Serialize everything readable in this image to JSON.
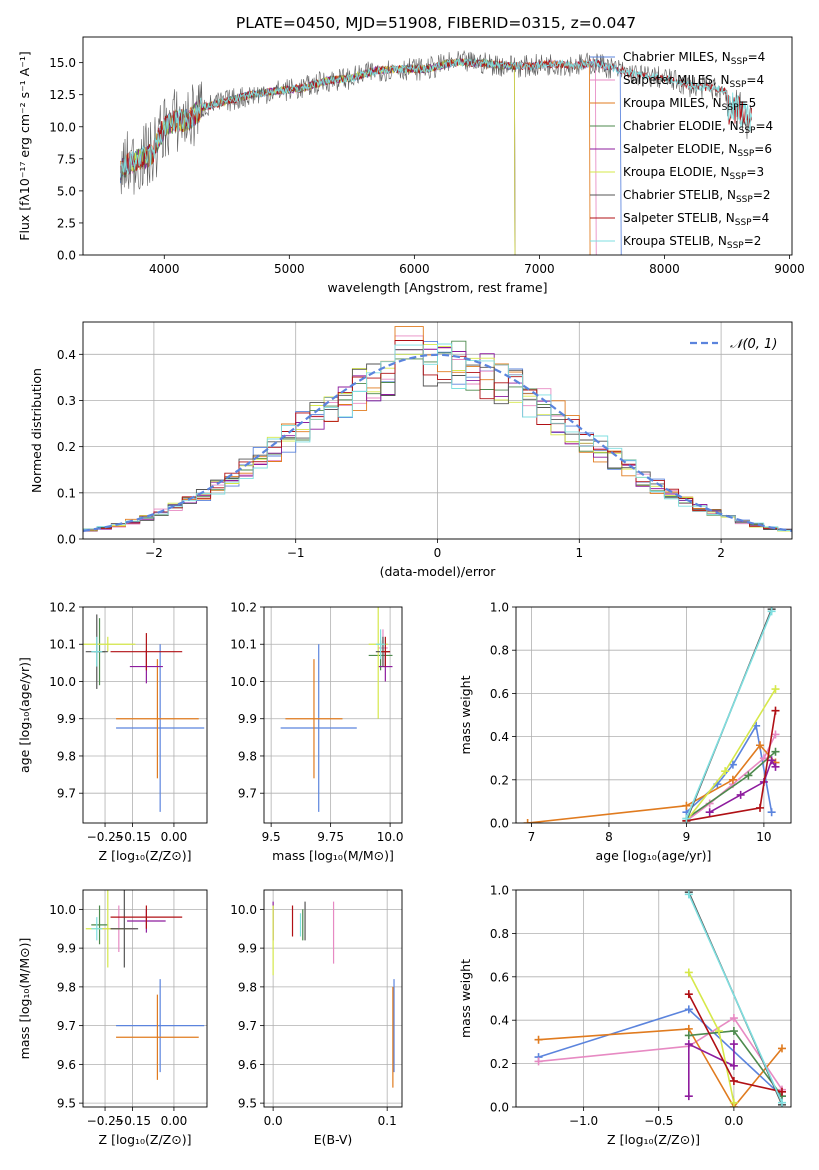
{
  "colors": {
    "chabrier_miles": "#5b84dd",
    "salpeter_miles": "#e78ac3",
    "kroupa_miles": "#e07b1f",
    "chabrier_elodie": "#4d8a4d",
    "salpeter_elodie": "#8e1c9e",
    "kroupa_elodie": "#d6e84a",
    "chabrier_stelib": "#555555",
    "salpeter_stelib": "#b01015",
    "kroupa_stelib": "#7fdfe0",
    "gaussian": "#5b84dd",
    "grid": "#b0b0b0"
  },
  "chart_data": [
    {
      "id": "spectrum",
      "type": "line",
      "title": "PLATE=0450, MJD=51908, FIBERID=0315, z=0.047",
      "xlabel": "wavelength [Angstrom, rest frame]",
      "ylabel": "Flux [fλ10⁻¹⁷ erg cm⁻² s⁻¹ A⁻¹]",
      "xlim": [
        3350,
        9020
      ],
      "ylim": [
        0,
        17
      ],
      "xticks": [
        "4000",
        "5000",
        "6000",
        "7000",
        "8000",
        "9000"
      ],
      "yticks": [
        "0.0",
        "2.5",
        "5.0",
        "7.5",
        "10.0",
        "12.5",
        "15.0"
      ],
      "grid": false,
      "legend_position": "right",
      "data_x": [
        3650,
        3700,
        3800,
        3900,
        4000,
        4100,
        4200,
        4300,
        4500,
        4700,
        4900,
        5100,
        5300,
        5500,
        5700,
        5900,
        6100,
        6300,
        6500,
        6700,
        6900,
        7100,
        7300,
        7450,
        7600,
        7800,
        8000,
        8200,
        8400,
        8600,
        8700
      ],
      "data_y": [
        6.5,
        7.0,
        7.5,
        7.8,
        10.0,
        10.5,
        10.5,
        11.5,
        12.0,
        12.5,
        12.8,
        13.0,
        13.6,
        13.8,
        14.4,
        14.5,
        14.5,
        15.0,
        15.0,
        14.8,
        14.7,
        14.9,
        14.8,
        15.0,
        14.5,
        14.0,
        13.8,
        13.2,
        13.0,
        12.5,
        12.0
      ],
      "series": [
        {
          "name": "Chabrier MILES",
          "nssp": "4",
          "x_end": 7650
        },
        {
          "name": "Salpeter MILES",
          "nssp": "4",
          "x_end": 7450
        },
        {
          "name": "Kroupa MILES",
          "nssp": "5",
          "x_end": 7400
        },
        {
          "name": "Chabrier ELODIE",
          "nssp": "4",
          "x_end": 6800
        },
        {
          "name": "Salpeter ELODIE",
          "nssp": "6",
          "x_end": 6800
        },
        {
          "name": "Kroupa ELODIE",
          "nssp": "3",
          "x_end": 6800
        },
        {
          "name": "Chabrier STELIB",
          "nssp": "2",
          "x_end": 8700
        },
        {
          "name": "Salpeter STELIB",
          "nssp": "4",
          "x_end": 8700
        },
        {
          "name": "Kroupa STELIB",
          "nssp": "2",
          "x_end": 8700
        }
      ]
    },
    {
      "id": "residuals",
      "type": "histogram",
      "xlabel": "(data-model)/error",
      "ylabel": "Normed distribution",
      "xlim": [
        -2.5,
        2.5
      ],
      "ylim": [
        0,
        0.47
      ],
      "xticks": [
        "−2",
        "−1",
        "0",
        "1",
        "2"
      ],
      "yticks": [
        "0.0",
        "0.1",
        "0.2",
        "0.3",
        "0.4"
      ],
      "grid": true,
      "legend_position": "top-right",
      "legend_label": "𝒩(0, 1)",
      "bin_width": 0.1,
      "peaks": [
        0.4,
        0.44,
        0.46,
        0.39,
        0.41,
        0.4,
        0.41,
        0.43,
        0.42
      ]
    },
    {
      "id": "age_vs_z",
      "type": "errorbar",
      "xlabel": "Z [log₁₀(Z/Z⊙)]",
      "ylabel": "age  [log₁₀(age/yr)]",
      "xlim": [
        -0.33,
        0.12
      ],
      "ylim": [
        9.62,
        10.2
      ],
      "xticks": [
        "−0.25",
        "−0.15",
        "0.00"
      ],
      "yticks": [
        "9.7",
        "9.8",
        "9.9",
        "10.0",
        "10.1",
        "10.2"
      ],
      "grid": true,
      "points": [
        {
          "x": -0.05,
          "y": 9.875,
          "xerr": 0.16,
          "yerr": 0.225,
          "series": 0
        },
        {
          "x": -0.18,
          "y": 9.9,
          "xerr": 0.0,
          "yerr": 0.0,
          "series": 1
        },
        {
          "x": -0.06,
          "y": 9.9,
          "xerr": 0.15,
          "yerr": 0.16,
          "series": 2
        },
        {
          "x": -0.27,
          "y": 10.08,
          "xerr": 0.02,
          "yerr": 0.09,
          "series": 3
        },
        {
          "x": -0.1,
          "y": 10.04,
          "xerr": 0.06,
          "yerr": 0.045,
          "series": 4
        },
        {
          "x": -0.24,
          "y": 10.1,
          "xerr": 0.1,
          "yerr": 0.02,
          "series": 5
        },
        {
          "x": -0.28,
          "y": 10.08,
          "xerr": 0.04,
          "yerr": 0.1,
          "series": 6
        },
        {
          "x": -0.1,
          "y": 10.08,
          "xerr": 0.13,
          "yerr": 0.05,
          "series": 7
        },
        {
          "x": -0.28,
          "y": 10.08,
          "xerr": 0.02,
          "yerr": 0.04,
          "series": 8
        }
      ]
    },
    {
      "id": "age_vs_mass",
      "type": "errorbar",
      "xlabel": "mass [log₁₀(M/M⊙)]",
      "ylabel": "",
      "xlim": [
        9.47,
        10.05
      ],
      "ylim": [
        9.62,
        10.2
      ],
      "xticks": [
        "9.5",
        "9.75",
        "10.0"
      ],
      "yticks": [
        "9.7",
        "9.8",
        "9.9",
        "10.0",
        "10.1",
        "10.2"
      ],
      "grid": true,
      "points": [
        {
          "x": 9.7,
          "y": 9.875,
          "xerr": 0.16,
          "yerr": 0.225,
          "series": 0
        },
        {
          "x": 9.97,
          "y": 10.09,
          "xerr": 0.02,
          "yerr": 0.05,
          "series": 1
        },
        {
          "x": 9.68,
          "y": 9.9,
          "xerr": 0.12,
          "yerr": 0.16,
          "series": 2
        },
        {
          "x": 9.96,
          "y": 10.07,
          "xerr": 0.05,
          "yerr": 0.04,
          "series": 3
        },
        {
          "x": 9.98,
          "y": 10.04,
          "xerr": 0.03,
          "yerr": 0.04,
          "series": 4
        },
        {
          "x": 9.95,
          "y": 10.1,
          "xerr": 0.04,
          "yerr": 0.2,
          "series": 5
        },
        {
          "x": 9.97,
          "y": 10.08,
          "xerr": 0.03,
          "yerr": 0.04,
          "series": 6
        },
        {
          "x": 9.98,
          "y": 10.08,
          "xerr": 0.02,
          "yerr": 0.04,
          "series": 7
        },
        {
          "x": 9.96,
          "y": 10.1,
          "xerr": 0.02,
          "yerr": 0.04,
          "series": 8
        }
      ]
    },
    {
      "id": "weight_vs_age",
      "type": "line",
      "xlabel": "age  [log₁₀(age/yr)]",
      "ylabel": "mass weight",
      "xlim": [
        6.8,
        10.35
      ],
      "ylim": [
        0,
        1.0
      ],
      "xticks": [
        "7",
        "8",
        "9",
        "10"
      ],
      "yticks": [
        "0.0",
        "0.2",
        "0.4",
        "0.6",
        "0.8",
        "1.0"
      ],
      "grid": true,
      "lines": [
        {
          "series": 0,
          "x": [
            9.0,
            9.4,
            9.6,
            9.9,
            10.1
          ],
          "y": [
            0.05,
            0.18,
            0.27,
            0.45,
            0.05
          ]
        },
        {
          "series": 1,
          "x": [
            9.0,
            9.3,
            9.6,
            10.0,
            10.15
          ],
          "y": [
            0.01,
            0.09,
            0.18,
            0.3,
            0.41
          ]
        },
        {
          "series": 2,
          "x": [
            6.95,
            9.0,
            9.6,
            9.95,
            10.15
          ],
          "y": [
            0.0,
            0.08,
            0.2,
            0.36,
            0.28
          ]
        },
        {
          "series": 3,
          "x": [
            9.0,
            9.8,
            10.15
          ],
          "y": [
            0.02,
            0.22,
            0.33
          ]
        },
        {
          "series": 4,
          "x": [
            9.3,
            9.7,
            10.0,
            10.1,
            10.15
          ],
          "y": [
            0.05,
            0.13,
            0.19,
            0.29,
            0.26
          ]
        },
        {
          "series": 5,
          "x": [
            9.0,
            9.5,
            10.15
          ],
          "y": [
            0.01,
            0.24,
            0.62
          ]
        },
        {
          "series": 6,
          "x": [
            9.0,
            10.1
          ],
          "y": [
            0.01,
            0.99
          ]
        },
        {
          "series": 7,
          "x": [
            9.0,
            9.95,
            10.15
          ],
          "y": [
            0.01,
            0.07,
            0.52
          ]
        },
        {
          "series": 8,
          "x": [
            9.0,
            10.1
          ],
          "y": [
            0.02,
            0.98
          ]
        }
      ]
    },
    {
      "id": "mass_vs_z",
      "type": "errorbar",
      "xlabel": "Z [log₁₀(Z/Z⊙)]",
      "ylabel": "mass [log₁₀(M/M⊙)]",
      "xlim": [
        -0.33,
        0.12
      ],
      "ylim": [
        9.49,
        10.05
      ],
      "xticks": [
        "−0.25",
        "−0.15",
        "0.00"
      ],
      "yticks": [
        "9.5",
        "9.6",
        "9.7",
        "9.8",
        "9.9",
        "10.0"
      ],
      "grid": true,
      "points": [
        {
          "x": -0.05,
          "y": 9.7,
          "xerr": 0.16,
          "yerr": 0.12,
          "series": 0
        },
        {
          "x": -0.2,
          "y": 9.95,
          "xerr": 0.06,
          "yerr": 0.06,
          "series": 1
        },
        {
          "x": -0.06,
          "y": 9.67,
          "xerr": 0.15,
          "yerr": 0.11,
          "series": 2
        },
        {
          "x": -0.27,
          "y": 9.96,
          "xerr": 0.03,
          "yerr": 0.05,
          "series": 3
        },
        {
          "x": -0.1,
          "y": 9.97,
          "xerr": 0.07,
          "yerr": 0.03,
          "series": 4
        },
        {
          "x": -0.24,
          "y": 9.95,
          "xerr": 0.08,
          "yerr": 0.1,
          "series": 5
        },
        {
          "x": -0.18,
          "y": 9.95,
          "xerr": 0.05,
          "yerr": 0.1,
          "series": 6
        },
        {
          "x": -0.1,
          "y": 9.98,
          "xerr": 0.13,
          "yerr": 0.03,
          "series": 7
        },
        {
          "x": -0.28,
          "y": 9.95,
          "xerr": 0.02,
          "yerr": 0.03,
          "series": 8
        }
      ]
    },
    {
      "id": "mass_vs_ebv",
      "type": "errorbar",
      "xlabel": "E(B-V)",
      "ylabel": "",
      "xlim": [
        -0.008,
        0.113
      ],
      "ylim": [
        9.49,
        10.05
      ],
      "xticks": [
        "0.0",
        "0.1"
      ],
      "yticks": [
        "9.5",
        "9.6",
        "9.7",
        "9.8",
        "9.9",
        "10.0"
      ],
      "grid": true,
      "points": [
        {
          "x": 0.106,
          "y": 9.7,
          "xerr": 0.0,
          "yerr": 0.12,
          "series": 0
        },
        {
          "x": 0.053,
          "y": 9.94,
          "xerr": 0.0,
          "yerr": 0.08,
          "series": 1
        },
        {
          "x": 0.105,
          "y": 9.67,
          "xerr": 0.0,
          "yerr": 0.13,
          "series": 2
        },
        {
          "x": 0.026,
          "y": 9.96,
          "xerr": 0.0,
          "yerr": 0.04,
          "series": 3
        },
        {
          "x": 0.0,
          "y": 9.97,
          "xerr": 0.0,
          "yerr": 0.05,
          "series": 4
        },
        {
          "x": 0.0,
          "y": 9.92,
          "xerr": 0.0,
          "yerr": 0.09,
          "series": 5
        },
        {
          "x": 0.028,
          "y": 9.97,
          "xerr": 0.0,
          "yerr": 0.05,
          "series": 6
        },
        {
          "x": 0.017,
          "y": 9.97,
          "xerr": 0.0,
          "yerr": 0.04,
          "series": 7
        },
        {
          "x": 0.024,
          "y": 9.96,
          "xerr": 0.0,
          "yerr": 0.03,
          "series": 8
        }
      ]
    },
    {
      "id": "weight_vs_z",
      "type": "line",
      "xlabel": "Z [log₁₀(Z/Z⊙)]",
      "ylabel": "mass weight",
      "xlim": [
        -1.45,
        0.38
      ],
      "ylim": [
        0,
        1.0
      ],
      "xticks": [
        "−1.0",
        "−0.5",
        "0.0"
      ],
      "yticks": [
        "0.0",
        "0.2",
        "0.4",
        "0.6",
        "0.8",
        "1.0"
      ],
      "grid": true,
      "lines": [
        {
          "series": 0,
          "x": [
            -1.3,
            -0.3,
            0.32
          ],
          "y": [
            0.23,
            0.45,
            0.05
          ]
        },
        {
          "series": 1,
          "x": [
            -1.3,
            -0.3,
            0.0,
            0.32
          ],
          "y": [
            0.21,
            0.28,
            0.41,
            0.08
          ]
        },
        {
          "series": 2,
          "x": [
            -1.3,
            -0.3,
            0.0,
            0.32
          ],
          "y": [
            0.31,
            0.36,
            0.0,
            0.27
          ]
        },
        {
          "series": 3,
          "x": [
            -0.3,
            0.0,
            0.32
          ],
          "y": [
            0.33,
            0.35,
            0.05
          ]
        },
        {
          "series": 4,
          "x": [
            -0.3,
            -0.3,
            0.0,
            0.0
          ],
          "y": [
            0.05,
            0.29,
            0.19,
            0.29
          ]
        },
        {
          "series": 5,
          "x": [
            -0.3,
            -0.1,
            0.0
          ],
          "y": [
            0.62,
            0.35,
            0.02
          ]
        },
        {
          "series": 6,
          "x": [
            -0.3,
            0.32
          ],
          "y": [
            0.99,
            0.01
          ]
        },
        {
          "series": 7,
          "x": [
            -0.3,
            0.0,
            0.32
          ],
          "y": [
            0.52,
            0.12,
            0.07
          ]
        },
        {
          "series": 8,
          "x": [
            -0.3,
            0.32
          ],
          "y": [
            0.98,
            0.02
          ]
        }
      ]
    }
  ]
}
